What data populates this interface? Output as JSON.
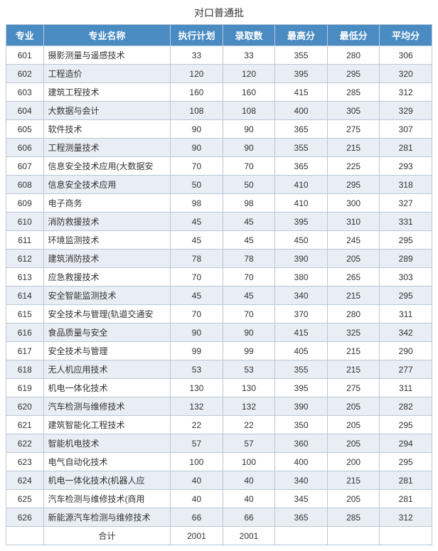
{
  "title": "对口普通批",
  "columns": [
    "专业",
    "专业名称",
    "执行计划",
    "录取数",
    "最高分",
    "最低分",
    "平均分"
  ],
  "rows": [
    [
      "601",
      "摄影测量与遥感技术",
      "33",
      "33",
      "355",
      "280",
      "306"
    ],
    [
      "602",
      "工程造价",
      "120",
      "120",
      "395",
      "295",
      "320"
    ],
    [
      "603",
      "建筑工程技术",
      "160",
      "160",
      "415",
      "285",
      "312"
    ],
    [
      "604",
      "大数据与会计",
      "108",
      "108",
      "400",
      "305",
      "329"
    ],
    [
      "605",
      "软件技术",
      "90",
      "90",
      "365",
      "275",
      "307"
    ],
    [
      "606",
      "工程测量技术",
      "90",
      "90",
      "355",
      "215",
      "281"
    ],
    [
      "607",
      "信息安全技术应用(大数据安",
      "70",
      "70",
      "365",
      "225",
      "293"
    ],
    [
      "608",
      "信息安全技术应用",
      "50",
      "50",
      "410",
      "295",
      "318"
    ],
    [
      "609",
      "电子商务",
      "98",
      "98",
      "410",
      "300",
      "327"
    ],
    [
      "610",
      "消防救援技术",
      "45",
      "45",
      "395",
      "310",
      "331"
    ],
    [
      "611",
      "环境监测技术",
      "45",
      "45",
      "450",
      "245",
      "295"
    ],
    [
      "612",
      "建筑消防技术",
      "78",
      "78",
      "390",
      "205",
      "289"
    ],
    [
      "613",
      "应急救援技术",
      "70",
      "70",
      "380",
      "265",
      "303"
    ],
    [
      "614",
      "安全智能监测技术",
      "45",
      "45",
      "340",
      "215",
      "295"
    ],
    [
      "615",
      "安全技术与管理(轨道交通安",
      "70",
      "70",
      "370",
      "280",
      "311"
    ],
    [
      "616",
      "食品质量与安全",
      "90",
      "90",
      "415",
      "325",
      "342"
    ],
    [
      "617",
      "安全技术与管理",
      "99",
      "99",
      "405",
      "215",
      "290"
    ],
    [
      "618",
      "无人机应用技术",
      "53",
      "53",
      "355",
      "215",
      "277"
    ],
    [
      "619",
      "机电一体化技术",
      "130",
      "130",
      "395",
      "275",
      "311"
    ],
    [
      "620",
      "汽车检测与维修技术",
      "132",
      "132",
      "390",
      "205",
      "282"
    ],
    [
      "621",
      "建筑智能化工程技术",
      "22",
      "22",
      "350",
      "205",
      "295"
    ],
    [
      "622",
      "智能机电技术",
      "57",
      "57",
      "360",
      "205",
      "294"
    ],
    [
      "623",
      "电气自动化技术",
      "100",
      "100",
      "400",
      "200",
      "295"
    ],
    [
      "624",
      "机电一体化技术(机器人应",
      "40",
      "40",
      "340",
      "215",
      "281"
    ],
    [
      "625",
      "汽车检测与维修技术(商用",
      "40",
      "40",
      "345",
      "205",
      "281"
    ],
    [
      "626",
      "新能源汽车检测与维修技术",
      "66",
      "66",
      "365",
      "285",
      "312"
    ]
  ],
  "total": {
    "label": "合计",
    "plan": "2001",
    "admitted": "2001"
  },
  "colors": {
    "header_bg": "#4a8bc2",
    "header_fg": "#ffffff",
    "row_odd": "#ffffff",
    "row_even": "#e8eef4",
    "border": "#b8c8d8"
  }
}
